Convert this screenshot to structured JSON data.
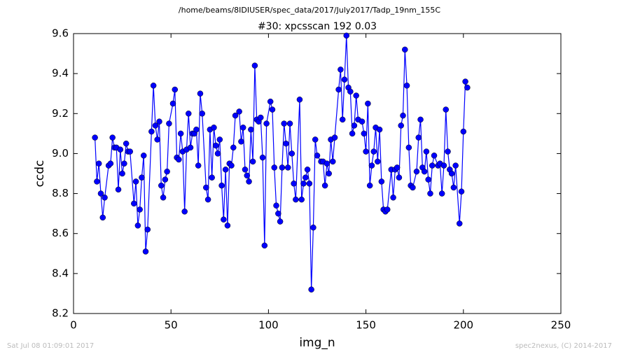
{
  "chart_data": {
    "type": "line",
    "file_title": "/home/beams/8IDIUSER/spec_data/2017/July2017/Tadp_19nm_155C",
    "title": "#30: xpcsscan 192 0.03",
    "xlabel": "img_n",
    "ylabel": "ccdc",
    "footer_left": "Sat Jul 08 01:09:01 2017",
    "footer_right": "spec2nexus, (C) 2014-2017",
    "color": "#0000ff",
    "marker": "circle",
    "xlim": [
      0,
      250
    ],
    "xticks": [
      0,
      50,
      100,
      150,
      200,
      250
    ],
    "ylim": [
      8.2,
      9.6
    ],
    "yticks": [
      8.2,
      8.4,
      8.6,
      8.8,
      {
        "value": 9,
        "label": "9.0"
      },
      9.2,
      9.4,
      9.6
    ],
    "x": [
      11,
      12,
      13,
      14,
      15,
      16,
      18,
      19,
      20,
      21,
      22,
      23,
      24,
      25,
      26,
      27,
      28,
      29,
      31,
      32,
      33,
      34,
      35,
      36,
      37,
      38,
      40,
      41,
      42,
      43,
      44,
      45,
      46,
      47,
      48,
      49,
      51,
      52,
      53,
      54,
      55,
      56,
      57,
      58,
      59,
      60,
      61,
      62,
      63,
      64,
      65,
      66,
      68,
      69,
      70,
      71,
      72,
      73,
      74,
      75,
      76,
      77,
      78,
      79,
      80,
      81,
      82,
      83,
      85,
      86,
      87,
      88,
      89,
      90,
      91,
      92,
      93,
      94,
      95,
      96,
      97,
      98,
      99,
      101,
      102,
      103,
      104,
      105,
      106,
      107,
      108,
      109,
      110,
      111,
      112,
      113,
      114,
      116,
      117,
      118,
      119,
      120,
      121,
      122,
      123,
      124,
      125,
      127,
      128,
      129,
      130,
      131,
      132,
      133,
      134,
      136,
      137,
      138,
      139,
      140,
      141,
      142,
      143,
      144,
      145,
      146,
      148,
      149,
      150,
      151,
      152,
      153,
      154,
      155,
      156,
      157,
      158,
      159,
      160,
      161,
      163,
      164,
      165,
      166,
      167,
      168,
      169,
      170,
      171,
      172,
      173,
      174,
      176,
      177,
      178,
      179,
      180,
      181,
      182,
      183,
      184,
      185,
      187,
      188,
      189,
      190,
      191,
      192,
      193,
      194,
      195,
      196,
      198,
      199,
      200,
      201,
      202
    ],
    "values": [
      9.08,
      8.86,
      8.95,
      8.8,
      8.68,
      8.78,
      8.94,
      8.95,
      9.08,
      9.03,
      9.03,
      8.82,
      9.02,
      8.9,
      8.95,
      9.05,
      9.01,
      9.01,
      8.75,
      8.86,
      8.64,
      8.72,
      8.88,
      8.99,
      8.51,
      8.62,
      9.11,
      9.34,
      9.14,
      9.07,
      9.16,
      8.84,
      8.78,
      8.87,
      8.91,
      9.15,
      9.25,
      9.32,
      8.98,
      8.97,
      9.1,
      9.01,
      8.71,
      9.02,
      9.2,
      9.03,
      9.1,
      9.1,
      9.12,
      8.94,
      9.3,
      9.2,
      8.83,
      8.77,
      9.12,
      8.88,
      9.13,
      9.04,
      9.0,
      9.07,
      8.84,
      8.67,
      8.92,
      8.64,
      8.95,
      8.94,
      9.03,
      9.19,
      9.21,
      9.06,
      9.13,
      8.92,
      8.89,
      8.86,
      9.12,
      8.96,
      9.44,
      9.17,
      9.16,
      9.18,
      8.98,
      8.54,
      9.15,
      9.26,
      9.22,
      8.93,
      8.74,
      8.7,
      8.66,
      8.93,
      9.15,
      9.05,
      8.93,
      9.15,
      9.0,
      8.85,
      8.77,
      9.27,
      8.77,
      8.85,
      8.88,
      8.92,
      8.85,
      8.32,
      8.63,
      9.07,
      8.99,
      8.96,
      8.96,
      8.84,
      8.95,
      8.9,
      9.07,
      8.96,
      9.08,
      9.32,
      9.42,
      9.17,
      9.37,
      9.59,
      9.33,
      9.31,
      9.1,
      9.14,
      9.29,
      9.17,
      9.16,
      9.1,
      9.01,
      9.25,
      8.84,
      8.94,
      9.01,
      9.13,
      8.96,
      9.12,
      8.86,
      8.72,
      8.71,
      8.72,
      8.92,
      8.78,
      8.92,
      8.93,
      8.88,
      9.14,
      9.19,
      9.52,
      9.34,
      9.03,
      8.84,
      8.83,
      8.91,
      9.08,
      9.17,
      8.93,
      8.91,
      9.01,
      8.87,
      8.8,
      8.94,
      8.99,
      8.94,
      8.95,
      8.8,
      8.94,
      9.22,
      9.01,
      8.92,
      8.9,
      8.83,
      8.94,
      8.65,
      8.81,
      9.11,
      9.36,
      9.33
    ]
  }
}
